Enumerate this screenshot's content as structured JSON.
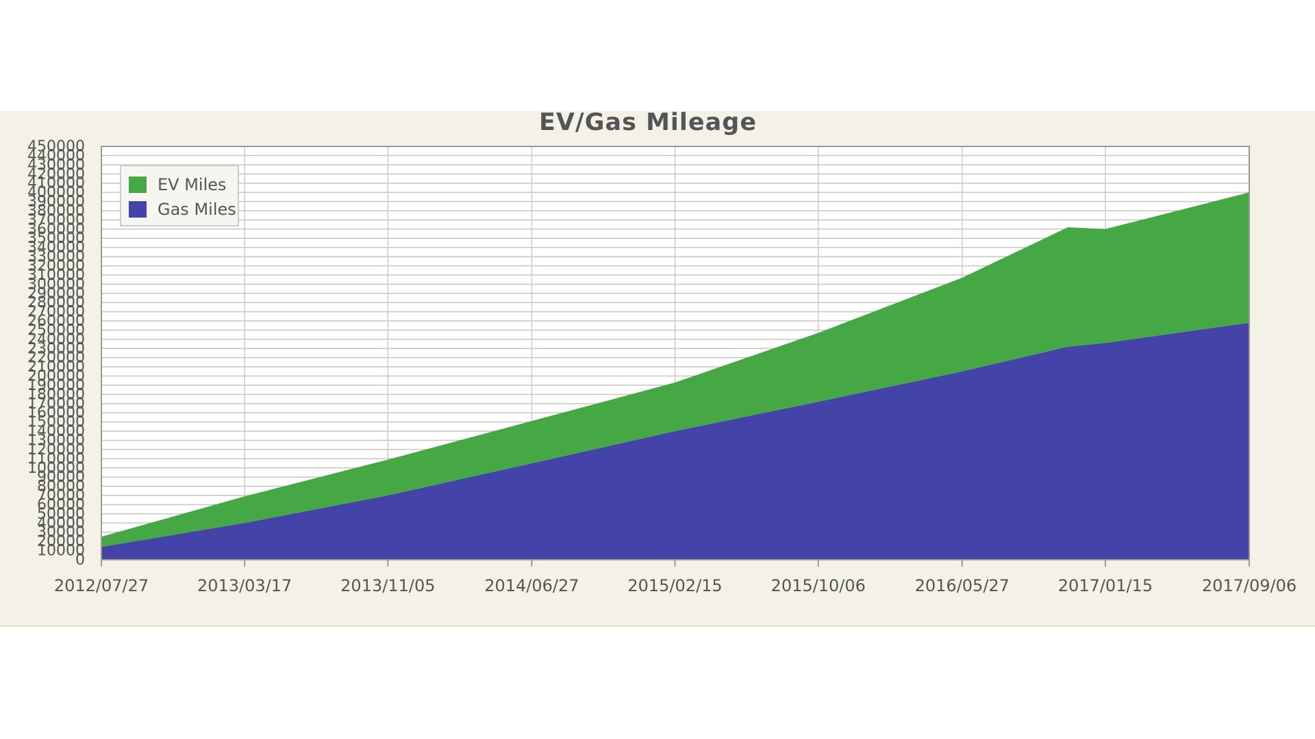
{
  "chart_data": {
    "type": "area",
    "stacked": true,
    "title": "EV/Gas Mileage",
    "xlabel": "",
    "ylabel": "",
    "x_ticks": [
      "2012/07/27",
      "2013/03/17",
      "2013/11/05",
      "2014/06/27",
      "2015/02/15",
      "2015/10/06",
      "2016/05/27",
      "2017/01/15",
      "2017/09/06"
    ],
    "x": [
      "2012/07/27",
      "2013/03/17",
      "2013/11/05",
      "2014/06/27",
      "2015/02/15",
      "2015/10/06",
      "2016/05/27",
      "2016/11/15",
      "2017/01/15",
      "2017/09/06"
    ],
    "ylim": [
      0,
      450000
    ],
    "y_ticks": [
      0,
      10000,
      20000,
      30000,
      40000,
      50000,
      60000,
      70000,
      80000,
      90000,
      100000,
      110000,
      120000,
      130000,
      140000,
      150000,
      160000,
      170000,
      180000,
      190000,
      200000,
      210000,
      220000,
      230000,
      240000,
      250000,
      260000,
      270000,
      280000,
      290000,
      300000,
      310000,
      320000,
      330000,
      340000,
      350000,
      360000,
      370000,
      380000,
      390000,
      400000,
      410000,
      420000,
      430000,
      440000,
      450000
    ],
    "series": [
      {
        "name": "Gas Miles",
        "color": "#4343a8",
        "values": [
          14000,
          40000,
          70000,
          105000,
          140000,
          172000,
          205000,
          232000,
          236000,
          258000
        ]
      },
      {
        "name": "EV Miles",
        "color": "#45a845",
        "values": [
          11000,
          29000,
          39000,
          46000,
          53000,
          75000,
          102000,
          130000,
          124000,
          142000
        ]
      }
    ],
    "legend_position": "top-left",
    "grid": true
  }
}
